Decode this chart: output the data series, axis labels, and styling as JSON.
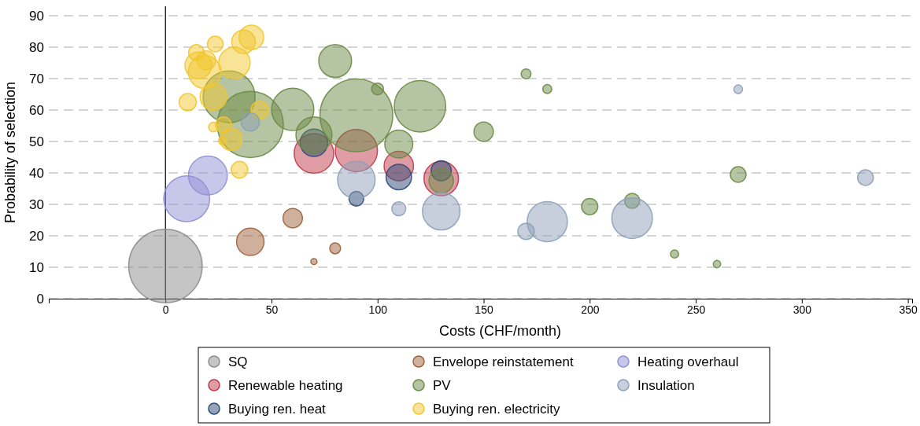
{
  "chart_data": {
    "type": "bubble",
    "xlabel": "Costs (CHF/month)",
    "ylabel": "Probability of selection",
    "xlim": [
      -55,
      352
    ],
    "xticks": [
      0,
      50,
      100,
      150,
      200,
      250,
      300,
      350
    ],
    "ylim": [
      0,
      93
    ],
    "yticks": [
      0,
      10,
      20,
      30,
      40,
      50,
      60,
      70,
      80,
      90
    ],
    "grid": "y",
    "legend": "bottom",
    "marker": "circle",
    "ref_lines": [
      {
        "axis": "x",
        "value": 0,
        "color": "#000000",
        "line_style": "solid"
      }
    ],
    "series": [
      {
        "name": "SQ",
        "color": "#8c8c8c",
        "x": [
          0
        ],
        "values": [
          10.4
        ],
        "sizes": [
          1
        ]
      },
      {
        "name": "Renewable heating",
        "color": "#c0394a",
        "x": [
          70,
          90,
          110,
          130
        ],
        "values": [
          46.2,
          47.1,
          42.2,
          38.2
        ],
        "sizes": [
          0.29,
          0.33,
          0.16,
          0.22
        ]
      },
      {
        "name": "Buying ren. heat",
        "color": "#2c4a78",
        "x": [
          70,
          90,
          110,
          130
        ],
        "values": [
          49.6,
          31.8,
          38.7,
          40.7
        ],
        "sizes": [
          0.14,
          0.04,
          0.12,
          0.075
        ]
      },
      {
        "name": "Envelope reinstatement",
        "color": "#a0623c",
        "x": [
          60,
          40,
          80,
          70
        ],
        "values": [
          25.6,
          18.1,
          16,
          11.8
        ],
        "sizes": [
          0.07,
          0.14,
          0.022,
          0.007
        ]
      },
      {
        "name": "PV",
        "color": "#6b8a45",
        "x": [
          80,
          30,
          40,
          60,
          70,
          90,
          100,
          120,
          110,
          150,
          170,
          180,
          200,
          220,
          270,
          240,
          260,
          130
        ],
        "values": [
          75.6,
          64.2,
          55.4,
          60.2,
          52.1,
          58.3,
          66.7,
          61.2,
          49.2,
          53.1,
          71.5,
          66.7,
          29.3,
          31.1,
          39.5,
          14.2,
          11,
          37.5
        ],
        "sizes": [
          0.2,
          0.5,
          0.81,
          0.33,
          0.24,
          0.98,
          0.026,
          0.49,
          0.145,
          0.07,
          0.018,
          0.015,
          0.049,
          0.042,
          0.046,
          0.012,
          0.01,
          0.11
        ]
      },
      {
        "name": "Buying ren. electricity",
        "color": "#f2c72e",
        "x": [
          23.5,
          40.5,
          36.8,
          14.6,
          19.2,
          32.5,
          15.5,
          18.5,
          22.6,
          10.5,
          44.5,
          22.6,
          27.4,
          30.9,
          26.8,
          34.9
        ],
        "values": [
          81,
          83.1,
          81.7,
          78.3,
          75.8,
          75,
          74.2,
          72.1,
          64.2,
          62.5,
          60,
          54.6,
          55.3,
          50.7,
          50.2,
          41
        ],
        "sizes": [
          0.046,
          0.113,
          0.103,
          0.046,
          0.066,
          0.183,
          0.133,
          0.2,
          0.133,
          0.055,
          0.059,
          0.017,
          0.046,
          0.09,
          0.011,
          0.052
        ]
      },
      {
        "name": "Heating overhaul",
        "color": "#8f8fd6",
        "x": [
          10,
          20
        ],
        "values": [
          31.8,
          39.2
        ],
        "sizes": [
          0.39,
          0.28
        ]
      },
      {
        "name": "Insulation",
        "color": "#8da0b8",
        "x": [
          40,
          90,
          110,
          130,
          170,
          180,
          220,
          270,
          330
        ],
        "values": [
          56.2,
          37.8,
          28.6,
          27.8,
          21.4,
          24.5,
          25.6,
          66.6,
          38.5
        ],
        "sizes": [
          0.061,
          0.26,
          0.036,
          0.26,
          0.05,
          0.3,
          0.305,
          0.014,
          0.046
        ]
      }
    ]
  }
}
